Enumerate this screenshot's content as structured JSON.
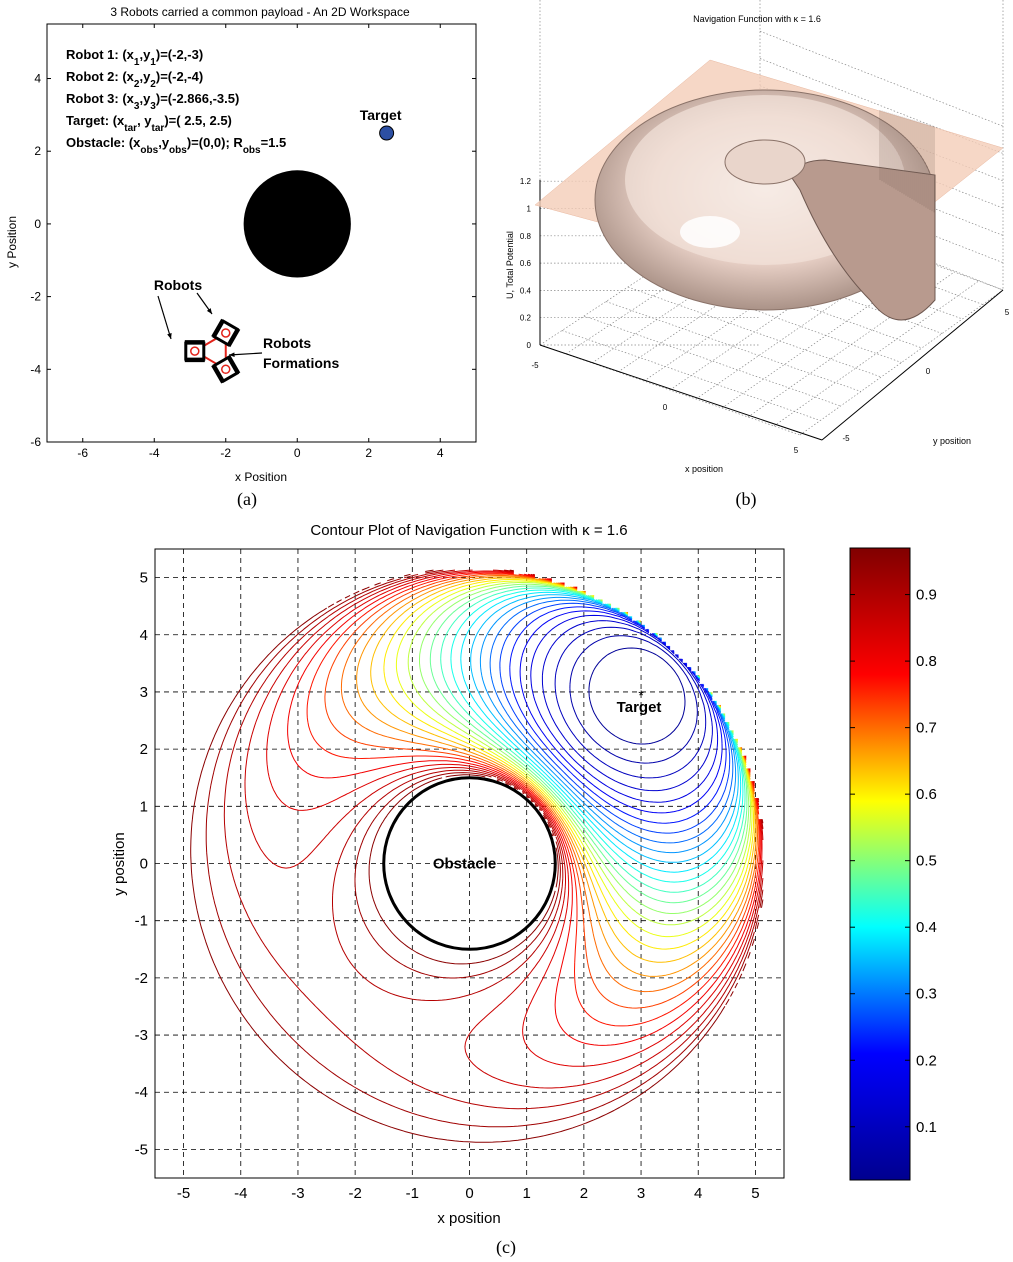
{
  "captions": {
    "a": "(a)",
    "b": "(b)",
    "c": "(c)"
  },
  "chart_data": [
    {
      "panel": "a",
      "type": "scatter",
      "title": "3 Robots carried a common payload - An 2D Workspace",
      "xlabel": "x Position",
      "ylabel": "y Position",
      "xlim": [
        -7,
        5
      ],
      "ylim": [
        -6,
        5.5
      ],
      "xticks": [
        "-6",
        "-4",
        "-2",
        "0",
        "2",
        "4"
      ],
      "yticks": [
        "-6",
        "-4",
        "-2",
        "0",
        "2",
        "4"
      ],
      "info_lines": [
        {
          "lead": "Robot 1: (x",
          "s1": "1",
          "mid": ",y",
          "s2": "1",
          "tail": ")=(-2,-3)"
        },
        {
          "lead": "Robot 2: (x",
          "s1": "2",
          "mid": ",y",
          "s2": "2",
          "tail": ")=(-2,-4)"
        },
        {
          "lead": "Robot 3: (x",
          "s1": "3",
          "mid": ",y",
          "s2": "3",
          "tail": ")=(-2.866,-3.5)"
        },
        {
          "lead": "Target: (x",
          "s1": "tar",
          "mid": ", y",
          "s2": "tar",
          "tail": ")=( 2.5, 2.5)"
        },
        {
          "lead": "Obstacle: (x",
          "s1": "obs",
          "mid": ",y",
          "s2": "obs",
          "tail": ")=(0,0); R",
          "s3": "obs",
          "tail2": "=1.5"
        }
      ],
      "obstacle": {
        "x": 0,
        "y": 0,
        "r": 1.5,
        "label": "Obstacle",
        "color": "#000000"
      },
      "target": {
        "x": 2.5,
        "y": 2.5,
        "label": "Target",
        "color": "#2c4fa3"
      },
      "robots": [
        {
          "x": -2,
          "y": -3
        },
        {
          "x": -2,
          "y": -4
        },
        {
          "x": -2.866,
          "y": -3.5
        }
      ],
      "robots_label": "Robots",
      "formation_label": [
        "Robots",
        "Formations"
      ],
      "formation_color": "#e2231a"
    },
    {
      "panel": "b",
      "type": "surface",
      "title": "Navigation Function with κ = 1.6",
      "xlabel": "x position",
      "ylabel": "y position",
      "zlabel": "U, Total Potential",
      "zticks": [
        "0",
        "0.2",
        "0.4",
        "0.6",
        "0.8",
        "1",
        "1.2"
      ],
      "xticks": [
        "-5",
        "0",
        "5"
      ],
      "yticks": [
        "-5",
        "0",
        "5"
      ],
      "surface_color": "#e6c3b5",
      "plane_color": "#f4cdb8"
    },
    {
      "panel": "c",
      "type": "contour",
      "title": "Contour Plot of Navigation Function with κ = 1.6",
      "xlabel": "x position",
      "ylabel": "y position",
      "xlim": [
        -5.5,
        5.5
      ],
      "ylim": [
        -5.5,
        5.5
      ],
      "xticks": [
        "-5",
        "-4",
        "-3",
        "-2",
        "-1",
        "0",
        "1",
        "2",
        "3",
        "4",
        "5"
      ],
      "yticks": [
        "-5",
        "-4",
        "-3",
        "-2",
        "-1",
        "0",
        "1",
        "2",
        "3",
        "4",
        "5"
      ],
      "grid": true,
      "obstacle": {
        "x": 0,
        "y": 0,
        "r": 1.5,
        "label": "Obstacle"
      },
      "target": {
        "x": 3,
        "y": 3,
        "label": "Target"
      },
      "workspace_radius": 5.2,
      "contour_levels": 30,
      "colorbar": {
        "min": 0.02,
        "max": 0.97,
        "ticks": [
          "0.1",
          "0.2",
          "0.3",
          "0.4",
          "0.5",
          "0.6",
          "0.7",
          "0.8",
          "0.9"
        ],
        "colormap": [
          "#00008f",
          "#0000ff",
          "#00ffff",
          "#ffff00",
          "#ff0000",
          "#800000"
        ]
      }
    }
  ]
}
